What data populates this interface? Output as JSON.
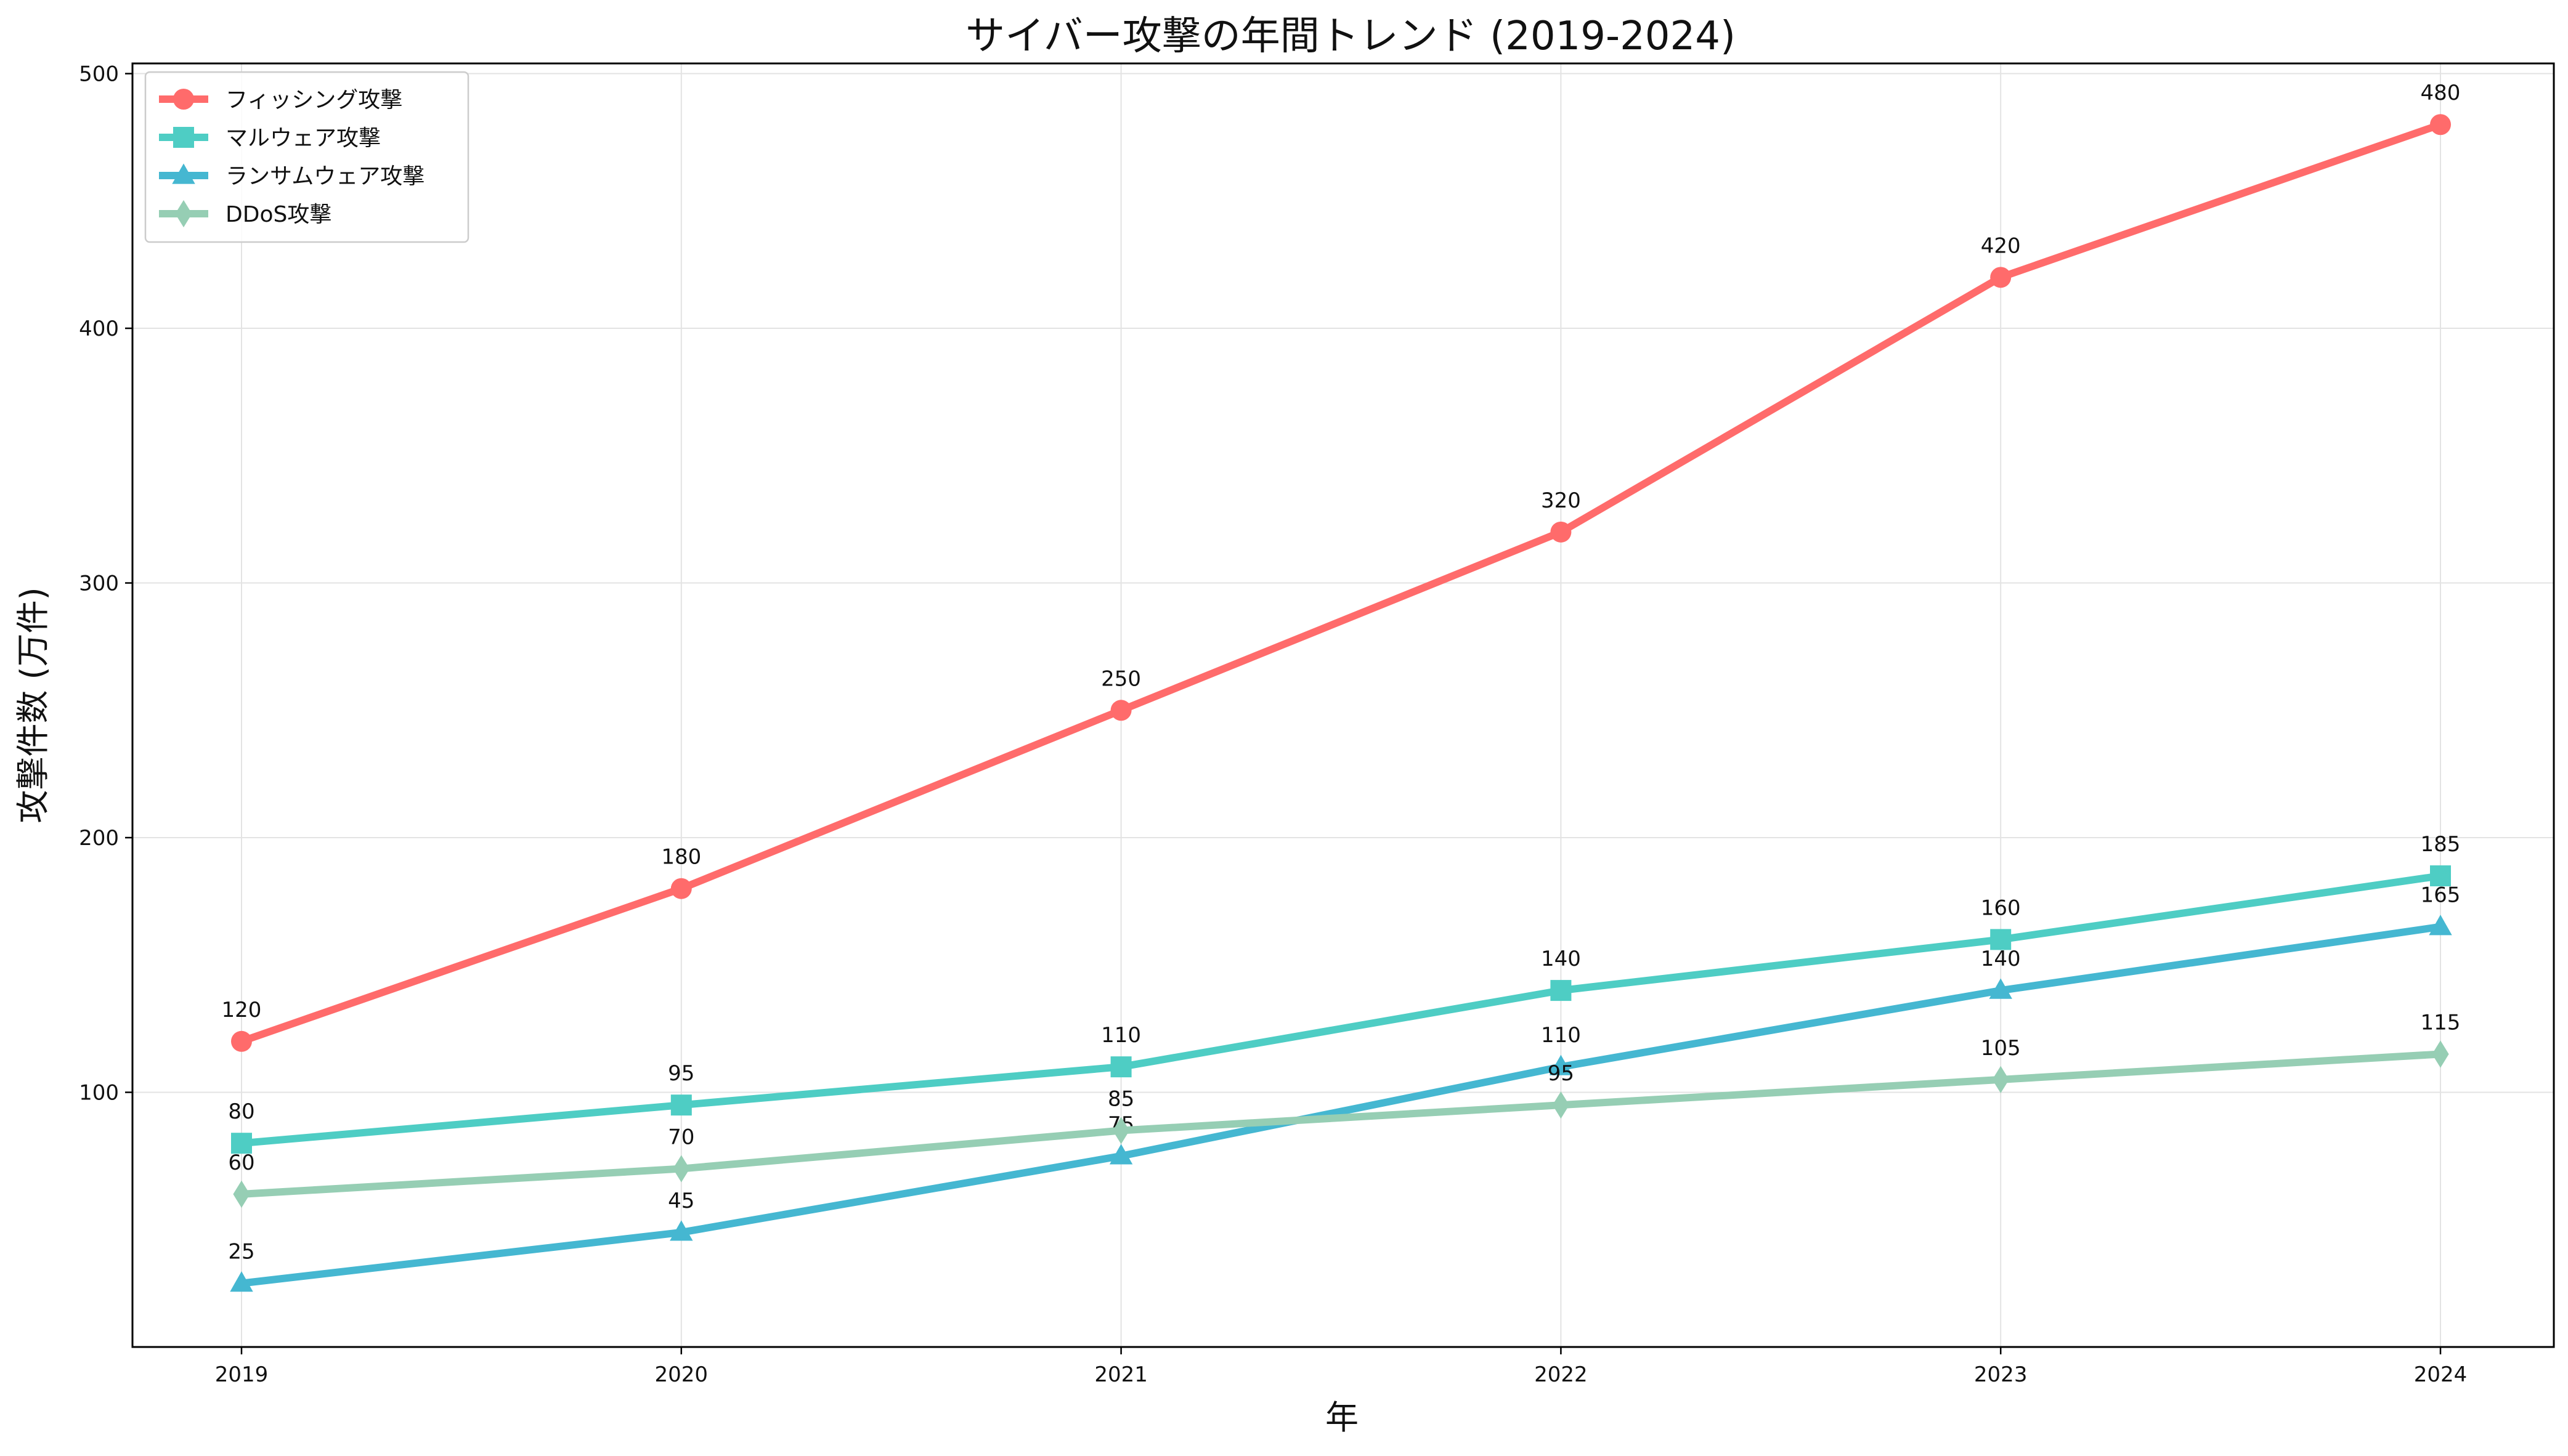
{
  "chart_data": {
    "type": "line",
    "title": "サイバー攻撃の年間トレンド (2019-2024)",
    "xlabel": "年",
    "ylabel": "攻撃件数 (万件)",
    "categories": [
      "2019",
      "2020",
      "2021",
      "2022",
      "2023",
      "2024"
    ],
    "y_ticks": [
      100,
      200,
      300,
      400,
      500
    ],
    "ylim": [
      0,
      504
    ],
    "grid": true,
    "legend_position": "top-left",
    "series": [
      {
        "name": "フィッシング攻撃",
        "values": [
          120,
          180,
          250,
          320,
          420,
          480
        ],
        "labels": [
          "120",
          "180",
          "250",
          "320",
          "420",
          "480"
        ],
        "color": "#ff6b6b",
        "marker": "circle"
      },
      {
        "name": "マルウェア攻撃",
        "values": [
          80,
          95,
          110,
          140,
          160,
          185
        ],
        "labels": [
          "80",
          "95",
          "110",
          "140",
          "160",
          "185"
        ],
        "color": "#4ecdc4",
        "marker": "square"
      },
      {
        "name": "ランサムウェア攻撃",
        "values": [
          25,
          45,
          75,
          110,
          140,
          165
        ],
        "labels": [
          "25",
          "45",
          "75",
          "110",
          "140",
          "165"
        ],
        "color": "#45b7d1",
        "marker": "triangle"
      },
      {
        "name": "DDoS攻撃",
        "values": [
          60,
          70,
          85,
          95,
          105,
          115
        ],
        "labels": [
          "60",
          "70",
          "85",
          "95",
          "105",
          "115"
        ],
        "color": "#96ceb4",
        "marker": "diamond"
      }
    ]
  }
}
